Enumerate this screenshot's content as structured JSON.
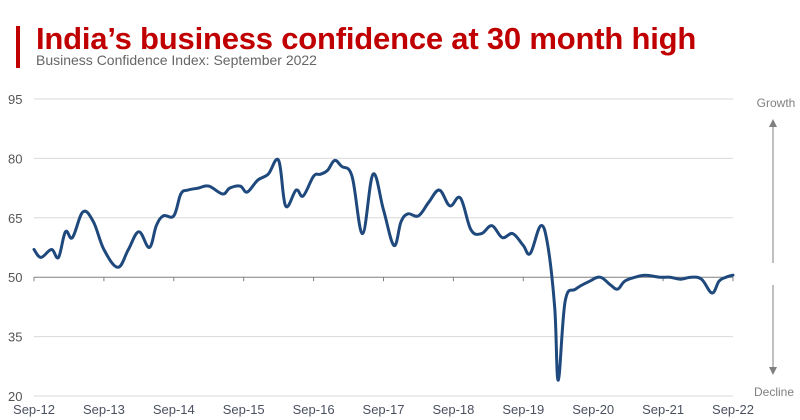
{
  "header": {
    "title": "India’s business confidence at 30 month high",
    "subtitle": "Business Confidence Index: September 2022"
  },
  "side_labels": {
    "top": "Growth",
    "bottom": "Decline"
  },
  "colors": {
    "title": "#c00000",
    "accent_bar": "#c00000",
    "line": "#1f497d",
    "grid": "#d9d9d9",
    "axis": "#808080"
  },
  "chart_data": {
    "type": "line",
    "title": "India’s business confidence at 30 month high",
    "subtitle": "Business Confidence Index: September 2022",
    "xlabel": "",
    "ylabel": "",
    "ylim": [
      20,
      95
    ],
    "yticks": [
      95,
      80,
      65,
      50,
      35,
      20
    ],
    "xticks": [
      "Sep-12",
      "Sep-13",
      "Sep-14",
      "Sep-15",
      "Sep-16",
      "Sep-17",
      "Sep-18",
      "Sep-19",
      "Sep-20",
      "Sep-21",
      "Sep-22"
    ],
    "baseline": 50,
    "grid": true,
    "legend": null,
    "annotations": [
      "Growth (arrow up above 50)",
      "Decline (arrow down below 50)"
    ],
    "series": [
      {
        "name": "Business Confidence Index",
        "x": [
          2012.75,
          2012.85,
          2013.0,
          2013.1,
          2013.2,
          2013.3,
          2013.45,
          2013.6,
          2013.75,
          2013.95,
          2014.1,
          2014.25,
          2014.4,
          2014.5,
          2014.6,
          2014.75,
          2014.85,
          2014.95,
          2015.1,
          2015.25,
          2015.45,
          2015.55,
          2015.7,
          2015.8,
          2015.95,
          2016.1,
          2016.25,
          2016.35,
          2016.5,
          2016.6,
          2016.75,
          2016.85,
          2016.95,
          2017.05,
          2017.15,
          2017.3,
          2017.45,
          2017.6,
          2017.75,
          2017.9,
          2018.0,
          2018.1,
          2018.25,
          2018.4,
          2018.55,
          2018.7,
          2018.85,
          2019.0,
          2019.15,
          2019.3,
          2019.45,
          2019.6,
          2019.75,
          2019.85,
          2020.0,
          2020.1,
          2020.2,
          2020.25,
          2020.35,
          2020.5,
          2020.7,
          2020.85,
          2021.0,
          2021.1,
          2021.2,
          2021.35,
          2021.5,
          2021.7,
          2021.85,
          2022.0,
          2022.15,
          2022.3,
          2022.45,
          2022.55,
          2022.65,
          2022.75
        ],
        "values": [
          57,
          55,
          57,
          55,
          61.5,
          60,
          66.5,
          64,
          57,
          52.5,
          57,
          61.5,
          57.5,
          63,
          65.5,
          65.5,
          71,
          72,
          72.5,
          73,
          71,
          72.5,
          73,
          71.5,
          74.5,
          76,
          79.5,
          68,
          72,
          70.5,
          75.5,
          76,
          77,
          79.5,
          78,
          75.5,
          61,
          76,
          67,
          58,
          64,
          66,
          65.5,
          69,
          72,
          68,
          70,
          62,
          61,
          63,
          60,
          61,
          58,
          56,
          63,
          58,
          42,
          24,
          44,
          47,
          49,
          50,
          48,
          47,
          49,
          50,
          50.5,
          50,
          50,
          49.5,
          50,
          49.5,
          46,
          49,
          50,
          50.5
        ]
      }
    ]
  }
}
